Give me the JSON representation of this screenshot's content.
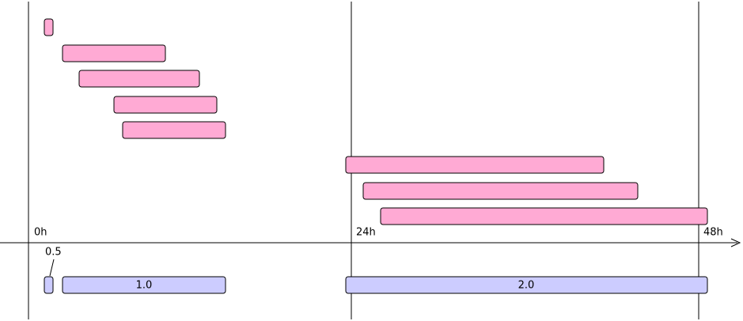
{
  "axis": {
    "labels": [
      "0h",
      "24h",
      "48h"
    ]
  },
  "bottom_bars": {
    "labels": [
      "0.5",
      "1.0",
      "2.0"
    ]
  }
}
